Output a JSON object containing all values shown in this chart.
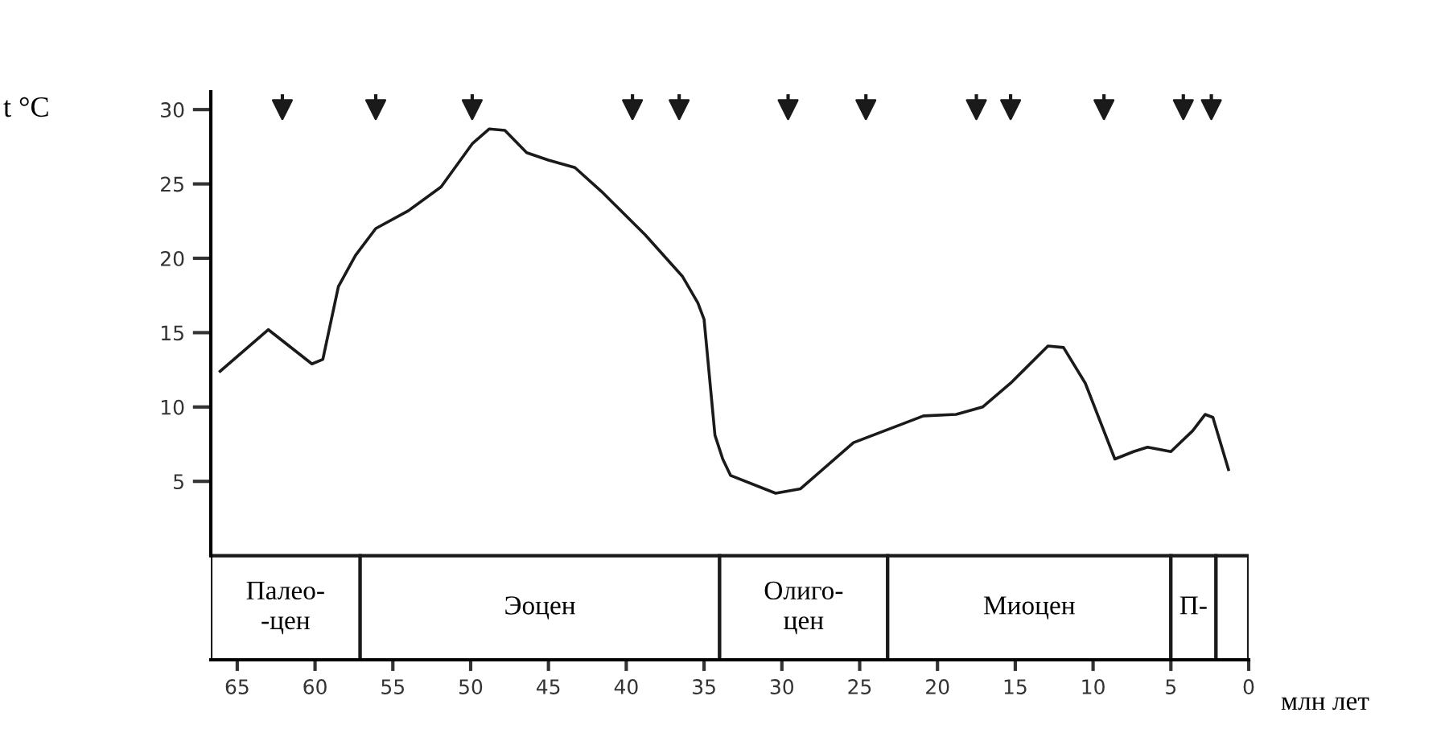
{
  "chart_data": {
    "type": "line",
    "ylabel": "t °C",
    "xlabel": "млн лет",
    "xlim": [
      66.7,
      0
    ],
    "xticks": [
      65,
      60,
      55,
      50,
      45,
      40,
      35,
      30,
      25,
      20,
      15,
      10,
      5,
      0
    ],
    "ylim": [
      -7,
      31.2
    ],
    "yticks": [
      5,
      10,
      15,
      20,
      25,
      30
    ],
    "grid": false,
    "legend": false,
    "series": [
      {
        "color": "#1a1a1a",
        "x": [
          66.1,
          63.0,
          60.2,
          59.5,
          58.5,
          57.4,
          56.1,
          54.0,
          51.9,
          49.9,
          48.8,
          47.8,
          46.4,
          45.0,
          43.3,
          41.6,
          38.8,
          36.4,
          35.4,
          35.0,
          34.3,
          33.8,
          33.3,
          30.4,
          28.8,
          25.4,
          20.9,
          18.8,
          17.1,
          15.3,
          12.9,
          11.9,
          10.5,
          8.6,
          7.4,
          6.5,
          5.0,
          3.6,
          2.8,
          2.3,
          1.3
        ],
        "values": [
          12.4,
          15.2,
          12.9,
          13.2,
          18.1,
          20.2,
          22.0,
          23.2,
          24.8,
          27.7,
          28.7,
          28.6,
          27.1,
          26.6,
          26.1,
          24.5,
          21.6,
          18.8,
          17.0,
          15.9,
          8.1,
          6.5,
          5.4,
          4.2,
          4.5,
          7.6,
          9.4,
          9.5,
          10.0,
          11.6,
          14.1,
          14.0,
          11.6,
          6.5,
          7.0,
          7.3,
          7.0,
          8.4,
          9.5,
          9.3,
          5.8
        ]
      },
      {
        "type": "scatter",
        "marker": "triangle",
        "color": "#1a1a1a",
        "x": [
          62.1,
          56.1,
          49.9,
          39.6,
          36.6,
          29.6,
          24.6,
          17.5,
          15.3,
          9.3,
          4.2,
          2.4
        ],
        "values": [
          30.0,
          30.0,
          30.0,
          30.0,
          30.0,
          30.0,
          30.0,
          30.0,
          30.0,
          30.0,
          30.0,
          30.0
        ]
      }
    ],
    "bands": [
      {
        "axis": "x",
        "from": 66.7,
        "to": 57.1,
        "label": "Палео-\n-цен"
      },
      {
        "axis": "x",
        "from": 57.1,
        "to": 34.0,
        "label": "Эоцен"
      },
      {
        "axis": "x",
        "from": 34.0,
        "to": 23.2,
        "label": "Олиго-\nцен"
      },
      {
        "axis": "x",
        "from": 23.2,
        "to": 5.0,
        "label": "Миоцен"
      },
      {
        "axis": "x",
        "from": 5.0,
        "to": 2.1,
        "label": "П-"
      },
      {
        "axis": "x",
        "from": 2.1,
        "to": 0,
        "label": null
      }
    ]
  }
}
